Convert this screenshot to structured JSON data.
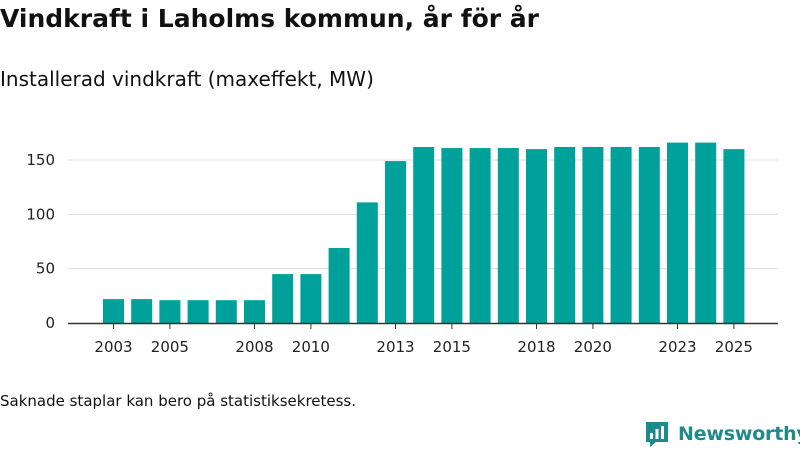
{
  "header": {
    "title": "Vindkraft i Laholms kommun, år för år",
    "subtitle": "Installerad vindkraft (maxeffekt, MW)"
  },
  "footer": {
    "note": "Saknade staplar kan bero på statistiksekretess.",
    "brand_name": "Newsworthy"
  },
  "colors": {
    "bar": "#00a19a",
    "grid": "#dddddd",
    "axis": "#333333",
    "brand": "#1f8a8c"
  },
  "chart_data": {
    "type": "bar",
    "title": "Vindkraft i Laholms kommun, år för år",
    "ylabel": "Installerad vindkraft (maxeffekt, MW)",
    "xlabel": "",
    "categories": [
      "2003",
      "2004",
      "2005",
      "2006",
      "2007",
      "2008",
      "2009",
      "2010",
      "2011",
      "2012",
      "2013",
      "2014",
      "2015",
      "2016",
      "2017",
      "2018",
      "2019",
      "2020",
      "2021",
      "2022",
      "2023",
      "2024",
      "2025"
    ],
    "values": [
      22,
      22,
      21,
      21,
      21,
      21,
      45,
      45,
      69,
      111,
      149,
      162,
      161,
      161,
      161,
      160,
      162,
      162,
      162,
      162,
      166,
      166,
      160
    ],
    "ylim": [
      0,
      175
    ],
    "yticks": [
      0,
      50,
      100,
      150
    ],
    "xtick_labels": [
      "2003",
      "2005",
      "2008",
      "2010",
      "2013",
      "2015",
      "2018",
      "2020",
      "2023",
      "2025"
    ],
    "grid": true,
    "legend": "none"
  }
}
